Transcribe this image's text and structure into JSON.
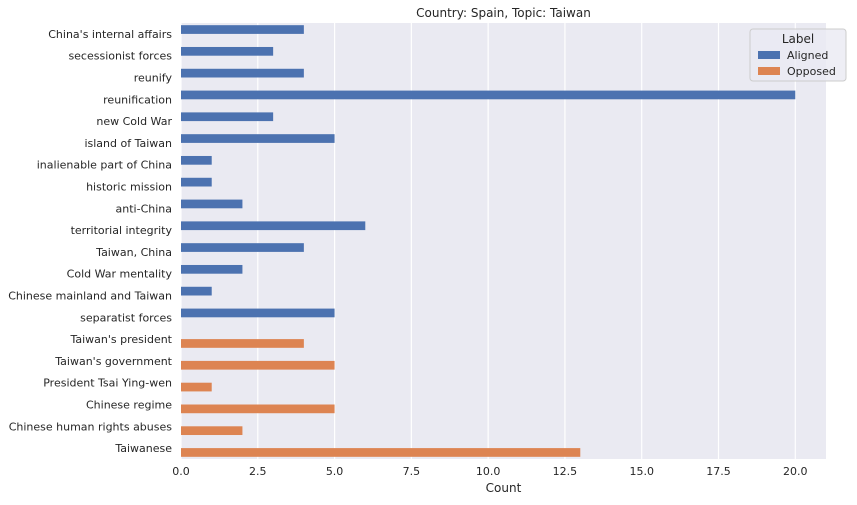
{
  "chart_data": {
    "type": "bar",
    "orientation": "horizontal",
    "title": "Country: Spain, Topic: Taiwan",
    "xlabel": "Count",
    "ylabel": "",
    "xlim": [
      0,
      21
    ],
    "xticks": [
      "0.0",
      "2.5",
      "5.0",
      "7.5",
      "10.0",
      "12.5",
      "15.0",
      "17.5",
      "20.0"
    ],
    "xtick_values": [
      0,
      2.5,
      5,
      7.5,
      10,
      12.5,
      15,
      17.5,
      20
    ],
    "grid": true,
    "legend": {
      "title": "Label",
      "position": "top-right",
      "entries": [
        "Aligned",
        "Opposed"
      ]
    },
    "categories": [
      "China's internal affairs",
      "secessionist forces",
      "reunify",
      "reunification",
      "new Cold War",
      "island of Taiwan",
      "inalienable part of China",
      "historic mission",
      "anti-China",
      "territorial integrity",
      "Taiwan, China",
      "Cold War mentality",
      "Chinese mainland and Taiwan",
      "separatist forces",
      "Taiwan's president",
      "Taiwan's government",
      "President Tsai Ying-wen",
      "Chinese regime",
      "Chinese human rights abuses",
      "Taiwanese"
    ],
    "series": [
      {
        "name": "Aligned",
        "color": "#4c72b0",
        "values": [
          4,
          3,
          4,
          20,
          3,
          5,
          1,
          1,
          2,
          6,
          4,
          2,
          1,
          5,
          null,
          null,
          null,
          null,
          null,
          null
        ]
      },
      {
        "name": "Opposed",
        "color": "#dd8452",
        "values": [
          null,
          null,
          null,
          null,
          null,
          null,
          null,
          null,
          null,
          null,
          null,
          null,
          null,
          null,
          4,
          5,
          1,
          5,
          2,
          13
        ]
      }
    ],
    "colors": {
      "plot_background": "#eaeaf2",
      "grid": "#ffffff",
      "legend_background": "#eaeaf2",
      "legend_border": "#cccccc"
    }
  }
}
